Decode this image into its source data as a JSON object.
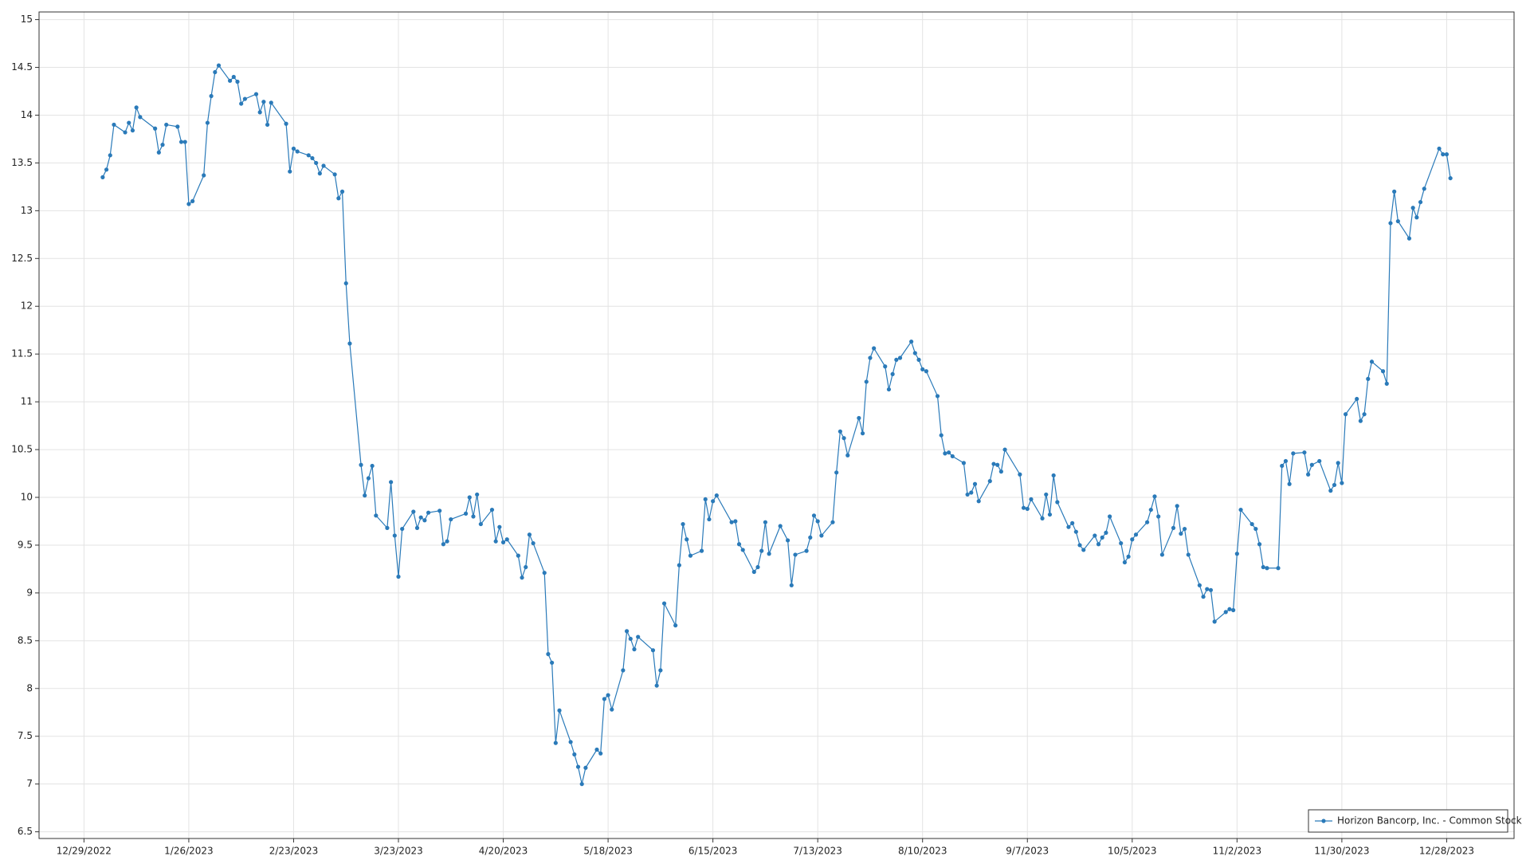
{
  "chart_data": {
    "type": "line",
    "x": [
      "1/3/2023",
      "1/4/2023",
      "1/5/2023",
      "1/6/2023",
      "1/9/2023",
      "1/10/2023",
      "1/11/2023",
      "1/12/2023",
      "1/13/2023",
      "1/17/2023",
      "1/18/2023",
      "1/19/2023",
      "1/20/2023",
      "1/23/2023",
      "1/24/2023",
      "1/25/2023",
      "1/26/2023",
      "1/27/2023",
      "1/30/2023",
      "1/31/2023",
      "2/1/2023",
      "2/2/2023",
      "2/3/2023",
      "2/6/2023",
      "2/7/2023",
      "2/8/2023",
      "2/9/2023",
      "2/10/2023",
      "2/13/2023",
      "2/14/2023",
      "2/15/2023",
      "2/16/2023",
      "2/17/2023",
      "2/21/2023",
      "2/22/2023",
      "2/23/2023",
      "2/24/2023",
      "2/27/2023",
      "2/28/2023",
      "3/1/2023",
      "3/2/2023",
      "3/3/2023",
      "3/6/2023",
      "3/7/2023",
      "3/8/2023",
      "3/9/2023",
      "3/10/2023",
      "3/13/2023",
      "3/14/2023",
      "3/15/2023",
      "3/16/2023",
      "3/17/2023",
      "3/20/2023",
      "3/21/2023",
      "3/22/2023",
      "3/23/2023",
      "3/24/2023",
      "3/27/2023",
      "3/28/2023",
      "3/29/2023",
      "3/30/2023",
      "3/31/2023",
      "4/3/2023",
      "4/4/2023",
      "4/5/2023",
      "4/6/2023",
      "4/10/2023",
      "4/11/2023",
      "4/12/2023",
      "4/13/2023",
      "4/14/2023",
      "4/17/2023",
      "4/18/2023",
      "4/19/2023",
      "4/20/2023",
      "4/21/2023",
      "4/24/2023",
      "4/25/2023",
      "4/26/2023",
      "4/27/2023",
      "4/28/2023",
      "5/1/2023",
      "5/2/2023",
      "5/3/2023",
      "5/4/2023",
      "5/5/2023",
      "5/8/2023",
      "5/9/2023",
      "5/10/2023",
      "5/11/2023",
      "5/12/2023",
      "5/15/2023",
      "5/16/2023",
      "5/17/2023",
      "5/18/2023",
      "5/19/2023",
      "5/22/2023",
      "5/23/2023",
      "5/24/2023",
      "5/25/2023",
      "5/26/2023",
      "5/30/2023",
      "5/31/2023",
      "6/1/2023",
      "6/2/2023",
      "6/5/2023",
      "6/6/2023",
      "6/7/2023",
      "6/8/2023",
      "6/9/2023",
      "6/12/2023",
      "6/13/2023",
      "6/14/2023",
      "6/15/2023",
      "6/16/2023",
      "6/20/2023",
      "6/21/2023",
      "6/22/2023",
      "6/23/2023",
      "6/26/2023",
      "6/27/2023",
      "6/28/2023",
      "6/29/2023",
      "6/30/2023",
      "7/3/2023",
      "7/5/2023",
      "7/6/2023",
      "7/7/2023",
      "7/10/2023",
      "7/11/2023",
      "7/12/2023",
      "7/13/2023",
      "7/14/2023",
      "7/17/2023",
      "7/18/2023",
      "7/19/2023",
      "7/20/2023",
      "7/21/2023",
      "7/24/2023",
      "7/25/2023",
      "7/26/2023",
      "7/27/2023",
      "7/28/2023",
      "7/31/2023",
      "8/1/2023",
      "8/2/2023",
      "8/3/2023",
      "8/4/2023",
      "8/7/2023",
      "8/8/2023",
      "8/9/2023",
      "8/10/2023",
      "8/11/2023",
      "8/14/2023",
      "8/15/2023",
      "8/16/2023",
      "8/17/2023",
      "8/18/2023",
      "8/21/2023",
      "8/22/2023",
      "8/23/2023",
      "8/24/2023",
      "8/25/2023",
      "8/28/2023",
      "8/29/2023",
      "8/30/2023",
      "8/31/2023",
      "9/1/2023",
      "9/5/2023",
      "9/6/2023",
      "9/7/2023",
      "9/8/2023",
      "9/11/2023",
      "9/12/2023",
      "9/13/2023",
      "9/14/2023",
      "9/15/2023",
      "9/18/2023",
      "9/19/2023",
      "9/20/2023",
      "9/21/2023",
      "9/22/2023",
      "9/25/2023",
      "9/26/2023",
      "9/27/2023",
      "9/28/2023",
      "9/29/2023",
      "10/2/2023",
      "10/3/2023",
      "10/4/2023",
      "10/5/2023",
      "10/6/2023",
      "10/9/2023",
      "10/10/2023",
      "10/11/2023",
      "10/12/2023",
      "10/13/2023",
      "10/16/2023",
      "10/17/2023",
      "10/18/2023",
      "10/19/2023",
      "10/20/2023",
      "10/23/2023",
      "10/24/2023",
      "10/25/2023",
      "10/26/2023",
      "10/27/2023",
      "10/30/2023",
      "10/31/2023",
      "11/1/2023",
      "11/2/2023",
      "11/3/2023",
      "11/6/2023",
      "11/7/2023",
      "11/8/2023",
      "11/9/2023",
      "11/10/2023",
      "11/13/2023",
      "11/14/2023",
      "11/15/2023",
      "11/16/2023",
      "11/17/2023",
      "11/20/2023",
      "11/21/2023",
      "11/22/2023",
      "11/24/2023",
      "11/27/2023",
      "11/28/2023",
      "11/29/2023",
      "11/30/2023",
      "12/1/2023",
      "12/4/2023",
      "12/5/2023",
      "12/6/2023",
      "12/7/2023",
      "12/8/2023",
      "12/11/2023",
      "12/12/2023",
      "12/13/2023",
      "12/14/2023",
      "12/15/2023",
      "12/18/2023",
      "12/19/2023",
      "12/20/2023",
      "12/21/2023",
      "12/22/2023",
      "12/26/2023",
      "12/27/2023",
      "12/28/2023",
      "12/29/2023"
    ],
    "series": [
      {
        "name": "Horizon Bancorp, Inc. - Common Stock",
        "color": "#2a7ab9",
        "values": [
          13.35,
          13.43,
          13.58,
          13.9,
          13.82,
          13.92,
          13.84,
          14.08,
          13.98,
          13.86,
          13.61,
          13.69,
          13.9,
          13.88,
          13.72,
          13.72,
          13.07,
          13.1,
          13.37,
          13.92,
          14.2,
          14.45,
          14.52,
          14.36,
          14.4,
          14.35,
          14.12,
          14.17,
          14.22,
          14.03,
          14.14,
          13.9,
          14.13,
          13.91,
          13.41,
          13.65,
          13.62,
          13.58,
          13.55,
          13.5,
          13.39,
          13.47,
          13.38,
          13.13,
          13.2,
          12.24,
          11.61,
          10.34,
          10.02,
          10.2,
          10.33,
          9.81,
          9.68,
          10.16,
          9.6,
          9.17,
          9.67,
          9.85,
          9.68,
          9.79,
          9.76,
          9.84,
          9.86,
          9.51,
          9.54,
          9.77,
          9.83,
          10.0,
          9.8,
          10.03,
          9.72,
          9.87,
          9.54,
          9.69,
          9.53,
          9.56,
          9.39,
          9.16,
          9.27,
          9.61,
          9.52,
          9.21,
          8.36,
          8.27,
          7.43,
          7.77,
          7.44,
          7.31,
          7.18,
          7.0,
          7.17,
          7.36,
          7.32,
          7.89,
          7.93,
          7.78,
          8.19,
          8.6,
          8.52,
          8.41,
          8.54,
          8.4,
          8.03,
          8.19,
          8.89,
          8.66,
          9.29,
          9.72,
          9.56,
          9.39,
          9.44,
          9.98,
          9.77,
          9.96,
          10.02,
          9.74,
          9.75,
          9.51,
          9.45,
          9.22,
          9.27,
          9.44,
          9.74,
          9.41,
          9.7,
          9.55,
          9.08,
          9.4,
          9.44,
          9.58,
          9.81,
          9.75,
          9.6,
          9.74,
          10.26,
          10.69,
          10.62,
          10.44,
          10.83,
          10.67,
          11.21,
          11.46,
          11.56,
          11.37,
          11.13,
          11.29,
          11.44,
          11.46,
          11.63,
          11.51,
          11.44,
          11.34,
          11.32,
          11.06,
          10.65,
          10.46,
          10.47,
          10.43,
          10.36,
          10.03,
          10.05,
          10.14,
          9.96,
          10.17,
          10.35,
          10.34,
          10.27,
          10.5,
          10.24,
          9.89,
          9.88,
          9.98,
          9.78,
          10.03,
          9.82,
          10.23,
          9.95,
          9.69,
          9.73,
          9.64,
          9.5,
          9.45,
          9.6,
          9.51,
          9.58,
          9.63,
          9.8,
          9.52,
          9.32,
          9.38,
          9.56,
          9.61,
          9.74,
          9.87,
          10.01,
          9.8,
          9.4,
          9.68,
          9.91,
          9.62,
          9.67,
          9.4,
          9.08,
          8.96,
          9.04,
          9.03,
          8.7,
          8.8,
          8.83,
          8.82,
          9.41,
          9.87,
          9.72,
          9.67,
          9.51,
          9.27,
          9.26,
          9.26,
          10.33,
          10.38,
          10.14,
          10.46,
          10.47,
          10.24,
          10.34,
          10.38,
          10.07,
          10.13,
          10.36,
          10.15,
          10.87,
          11.03,
          10.8,
          10.87,
          11.24,
          11.42,
          11.32,
          11.19,
          12.87,
          13.2,
          12.89,
          12.71,
          13.03,
          12.93,
          13.09,
          13.23,
          13.65,
          13.59,
          13.59,
          13.34
        ]
      }
    ],
    "xlim": [
      "12/17/2022",
      "1/15/2024"
    ],
    "xticks": [
      "12/29/2022",
      "1/26/2023",
      "2/23/2023",
      "3/23/2023",
      "4/20/2023",
      "5/18/2023",
      "6/15/2023",
      "7/13/2023",
      "8/10/2023",
      "9/7/2023",
      "10/5/2023",
      "11/2/2023",
      "11/30/2023",
      "12/28/2023"
    ],
    "ylim": [
      6.43,
      15.08
    ],
    "yticks": [
      6.5,
      7,
      7.5,
      8,
      8.5,
      9,
      9.5,
      10,
      10.5,
      11,
      11.5,
      12,
      12.5,
      13,
      13.5,
      14,
      14.5,
      15
    ],
    "grid": true,
    "legend": "bottom-right"
  }
}
